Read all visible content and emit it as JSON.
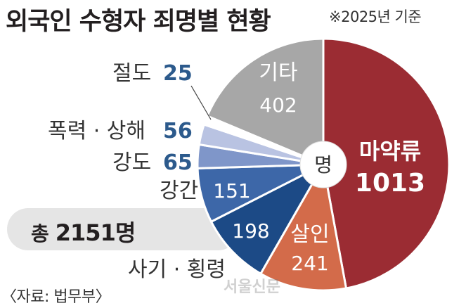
{
  "title": "외국인 수형자 죄명별 현황",
  "subtitle": "※2025년 기준",
  "total": {
    "label": "총",
    "value": "2151명"
  },
  "unit_center": "명",
  "source": "〈자료: 법무부〉",
  "watermark": "서울신문",
  "chart_data": {
    "type": "pie",
    "title": "외국인 수형자 죄명별 현황",
    "subtitle": "※2025년 기준",
    "unit": "명",
    "total": 2151,
    "start_angle_deg": 0,
    "direction": "clockwise",
    "slices": [
      {
        "label": "마약류",
        "value": 1013,
        "color": "#9b2c33",
        "label_position": "inside"
      },
      {
        "label": "살인",
        "value": 241,
        "color": "#d36b4a",
        "label_position": "inside"
      },
      {
        "label": "사기 · 횡령",
        "value": 198,
        "color": "#1c4a86",
        "label_position": "inside-value-outside-name"
      },
      {
        "label": "강간",
        "value": 151,
        "color": "#3d67a8",
        "label_position": "inside-value-outside-name"
      },
      {
        "label": "강도",
        "value": 65,
        "color": "#7f96c9",
        "label_position": "outside"
      },
      {
        "label": "폭력 · 상해",
        "value": 56,
        "color": "#b9c3e2",
        "label_position": "outside"
      },
      {
        "label": "절도",
        "value": 25,
        "color": "#ffffff",
        "label_position": "outside"
      },
      {
        "label": "기타",
        "value": 402,
        "color": "#a7a7a7",
        "label_position": "inside"
      }
    ]
  }
}
